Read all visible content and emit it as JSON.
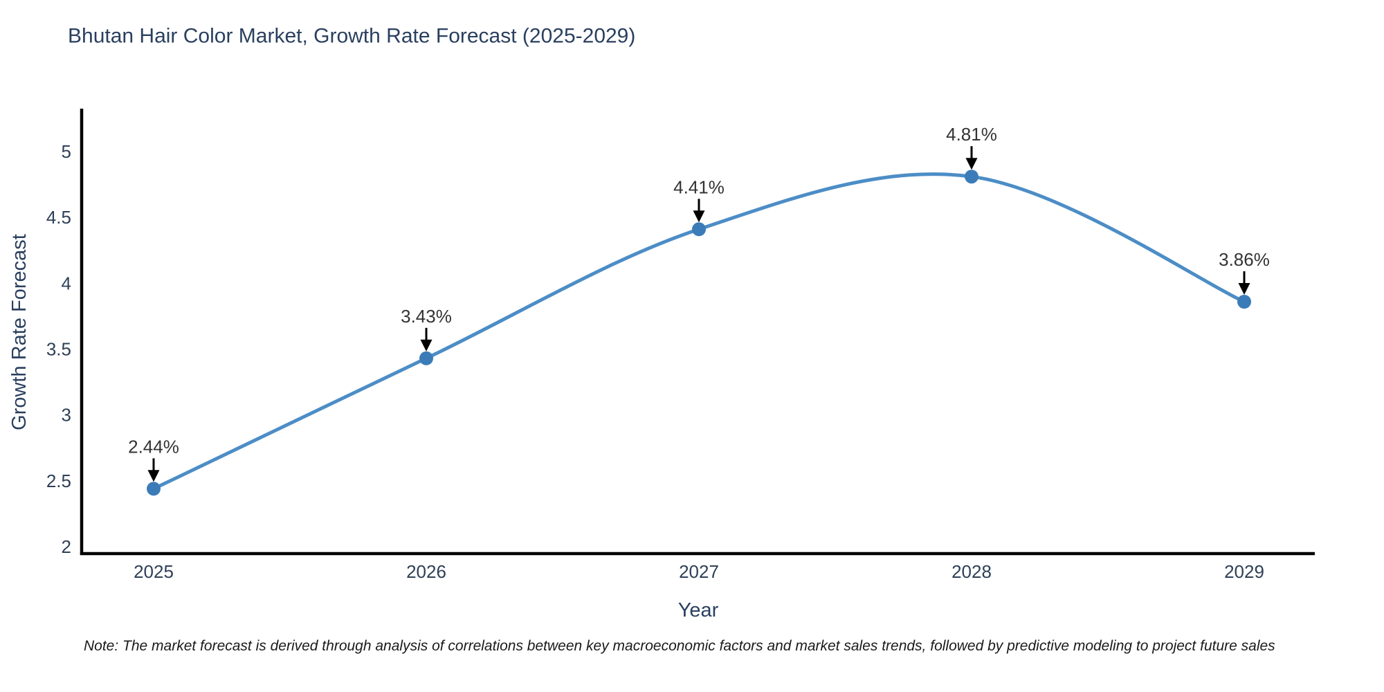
{
  "chart_data": {
    "type": "line",
    "title": "Bhutan Hair Color Market, Growth Rate Forecast (2025-2029)",
    "xlabel": "Year",
    "ylabel": "Growth Rate Forecast",
    "categories": [
      "2025",
      "2026",
      "2027",
      "2028",
      "2029"
    ],
    "values": [
      2.44,
      3.43,
      4.41,
      4.81,
      3.86
    ],
    "point_labels": [
      "2.44%",
      "3.43%",
      "4.41%",
      "4.81%",
      "3.86%"
    ],
    "yticks": [
      2,
      2.5,
      3,
      3.5,
      4,
      4.5,
      5
    ],
    "ylim": [
      2,
      5.3
    ],
    "grid": false,
    "legend": "none",
    "line_style": "smooth-spline",
    "line_color": "#4C8DC6",
    "marker_color": "#3B7CB8",
    "arrow_color": "#000000",
    "axis_color": "#000000",
    "title_color": "#2a3f5f",
    "tick_color": "#2e4057",
    "annotation_color": "#333333",
    "background_color": "#ffffff"
  },
  "note": {
    "text": "Note: The market forecast is derived through analysis of correlations between key macroeconomic factors and market sales trends, followed by predictive modeling to project future sales"
  }
}
